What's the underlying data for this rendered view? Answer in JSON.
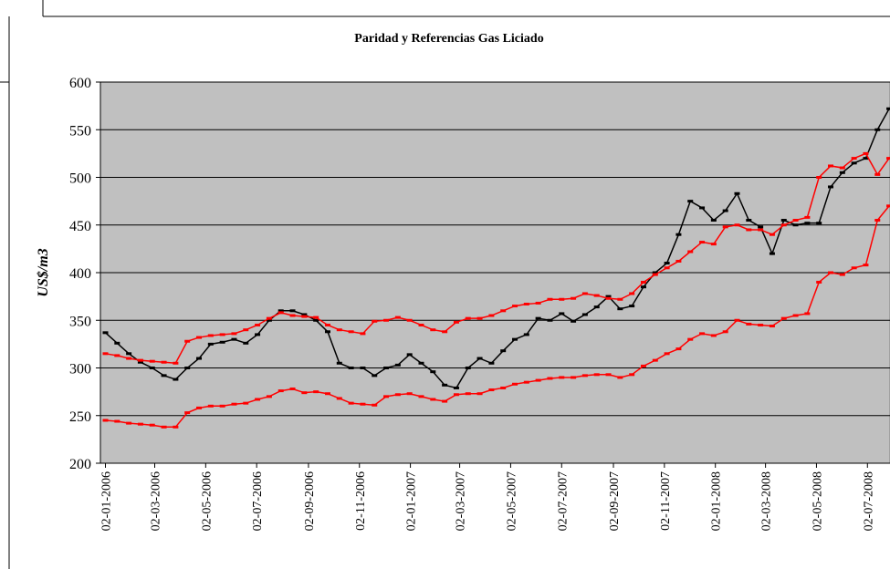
{
  "chart_data": {
    "type": "line",
    "title": "Paridad y Referencias Gas Liciado",
    "y_label": "US$/m3",
    "x": [
      "2006-01-02",
      "2006-01-16",
      "2006-01-30",
      "2006-02-13",
      "2006-02-27",
      "2006-03-13",
      "2006-03-27",
      "2006-04-10",
      "2006-04-24",
      "2006-05-08",
      "2006-05-22",
      "2006-06-05",
      "2006-06-19",
      "2006-07-03",
      "2006-07-17",
      "2006-07-31",
      "2006-08-14",
      "2006-08-28",
      "2006-09-11",
      "2006-09-25",
      "2006-10-09",
      "2006-10-23",
      "2006-11-06",
      "2006-11-20",
      "2006-12-04",
      "2006-12-18",
      "2007-01-01",
      "2007-01-15",
      "2007-01-29",
      "2007-02-12",
      "2007-02-26",
      "2007-03-12",
      "2007-03-26",
      "2007-04-09",
      "2007-04-23",
      "2007-05-07",
      "2007-05-21",
      "2007-06-04",
      "2007-06-18",
      "2007-07-02",
      "2007-07-16",
      "2007-07-30",
      "2007-08-13",
      "2007-08-27",
      "2007-09-10",
      "2007-09-24",
      "2007-10-08",
      "2007-10-22",
      "2007-11-05",
      "2007-11-19",
      "2007-12-03",
      "2007-12-17",
      "2007-12-31",
      "2008-01-14",
      "2008-01-28",
      "2008-02-11",
      "2008-02-25",
      "2008-03-10",
      "2008-03-24",
      "2008-04-07",
      "2008-04-21",
      "2008-05-05",
      "2008-05-19",
      "2008-06-02",
      "2008-06-16",
      "2008-06-30",
      "2008-07-14",
      "2008-07-28"
    ],
    "series": [
      {
        "color": "#000000",
        "values": [
          337,
          326,
          315,
          306,
          300,
          292,
          288,
          300,
          310,
          325,
          327,
          330,
          326,
          335,
          350,
          360,
          360,
          356,
          350,
          338,
          305,
          300,
          300,
          292,
          300,
          303,
          314,
          305,
          296,
          282,
          279,
          300,
          310,
          305,
          318,
          330,
          335,
          352,
          350,
          357,
          349,
          356,
          364,
          375,
          362,
          365,
          385,
          400,
          410,
          440,
          475,
          468,
          455,
          465,
          483,
          455,
          448,
          420,
          455,
          450,
          452,
          452,
          490,
          505,
          515,
          520,
          550,
          572
        ]
      },
      {
        "color": "#ff0000",
        "values": [
          315,
          313,
          310,
          308,
          307,
          306,
          305,
          328,
          332,
          334,
          335,
          336,
          340,
          345,
          352,
          358,
          355,
          354,
          353,
          345,
          340,
          338,
          336,
          349,
          350,
          353,
          350,
          345,
          340,
          338,
          348,
          352,
          352,
          355,
          360,
          365,
          367,
          368,
          372,
          372,
          373,
          378,
          376,
          373,
          372,
          378,
          390,
          398,
          405,
          412,
          422,
          432,
          430,
          448,
          450,
          445,
          445,
          440,
          450,
          455,
          458,
          500,
          512,
          510,
          520,
          525,
          503,
          520
        ]
      },
      {
        "color": "#ff0000",
        "values": [
          245,
          244,
          242,
          241,
          240,
          238,
          238,
          253,
          258,
          260,
          260,
          262,
          263,
          267,
          270,
          276,
          278,
          274,
          275,
          273,
          268,
          263,
          262,
          261,
          270,
          272,
          273,
          270,
          267,
          265,
          272,
          273,
          273,
          277,
          279,
          283,
          285,
          287,
          289,
          290,
          290,
          292,
          293,
          293,
          290,
          293,
          302,
          308,
          315,
          320,
          330,
          336,
          334,
          338,
          350,
          346,
          345,
          344,
          352,
          355,
          357,
          390,
          400,
          398,
          405,
          408,
          455,
          470
        ]
      }
    ],
    "xlim": [
      "2005-12-27",
      "2008-07-29"
    ],
    "xticks": [
      {
        "value": "2006-01-02",
        "label": "02-01-2006"
      },
      {
        "value": "2006-03-02",
        "label": "02-03-2006"
      },
      {
        "value": "2006-05-02",
        "label": "02-05-2006"
      },
      {
        "value": "2006-07-02",
        "label": "02-07-2006"
      },
      {
        "value": "2006-09-02",
        "label": "02-09-2006"
      },
      {
        "value": "2006-11-02",
        "label": "02-11-2006"
      },
      {
        "value": "2007-01-02",
        "label": "02-01-2007"
      },
      {
        "value": "2007-03-02",
        "label": "02-03-2007"
      },
      {
        "value": "2007-05-02",
        "label": "02-05-2007"
      },
      {
        "value": "2007-07-02",
        "label": "02-07-2007"
      },
      {
        "value": "2007-09-02",
        "label": "02-09-2007"
      },
      {
        "value": "2007-11-02",
        "label": "02-11-2007"
      },
      {
        "value": "2008-01-02",
        "label": "02-01-2008"
      },
      {
        "value": "2008-03-02",
        "label": "02-03-2008"
      },
      {
        "value": "2008-05-02",
        "label": "02-05-2008"
      },
      {
        "value": "2008-07-02",
        "label": "02-07-2008"
      }
    ],
    "ylim": [
      200,
      600
    ],
    "yticks": [
      200,
      250,
      300,
      350,
      400,
      450,
      500,
      550,
      600
    ],
    "grid": true,
    "plot_background": "#c0c0c0"
  }
}
